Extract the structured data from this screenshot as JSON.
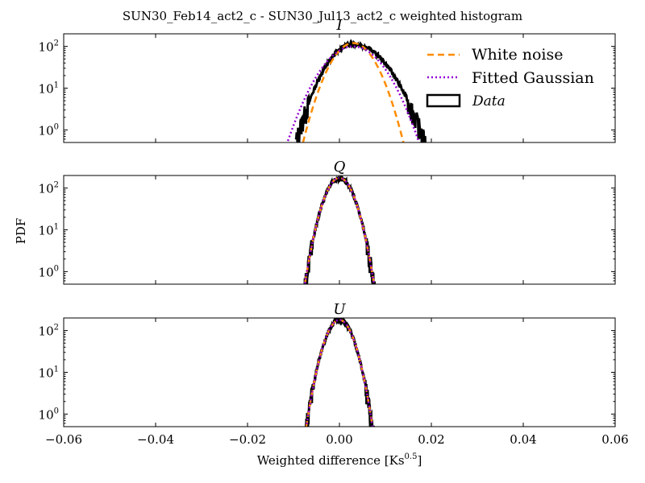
{
  "figure": {
    "title": "SUN30_Feb14_act2_c - SUN30_Jul13_act2_c weighted histogram",
    "xlabel": "Weighted difference [Ks",
    "xlabel_sup": "0.5",
    "xlabel_close": "]",
    "ylabel": "PDF"
  },
  "legend": {
    "placement": "upper-right",
    "items": [
      {
        "label": "White noise",
        "color": "#ff8c00",
        "style": "dashed"
      },
      {
        "label": "Fitted Gaussian",
        "color": "#9400d3",
        "style": "dotted"
      },
      {
        "label": "Data",
        "color": "#000000",
        "style": "box"
      }
    ]
  },
  "chart_data": [
    {
      "type": "line",
      "title": "I",
      "xlim": [
        -0.06,
        0.06
      ],
      "ylim": [
        0.5,
        200
      ],
      "yscale": "log",
      "xticks": [
        "−0.06",
        "−0.04",
        "−0.02",
        "0.00",
        "0.02",
        "0.04",
        "0.06"
      ],
      "yticks": [
        {
          "value": 1,
          "base": "10",
          "exp": "0"
        },
        {
          "value": 10,
          "base": "10",
          "exp": "1"
        },
        {
          "value": 100,
          "base": "10",
          "exp": "2"
        }
      ],
      "series": [
        {
          "name": "White noise",
          "mean": 0.003,
          "sigma": 0.0033,
          "peak": 120,
          "color": "#ff8c00"
        },
        {
          "name": "Fitted Gaussian",
          "mean": 0.003,
          "sigma": 0.0044,
          "peak": 100,
          "color": "#9400d3"
        },
        {
          "name": "Data",
          "mean": 0.003,
          "sigma": 0.0038,
          "peak": 115,
          "color": "#000000",
          "x_range": [
            -0.0095,
            0.023
          ]
        }
      ]
    },
    {
      "type": "line",
      "title": "Q",
      "xlim": [
        -0.06,
        0.06
      ],
      "ylim": [
        0.5,
        200
      ],
      "yscale": "log",
      "xticks": [
        "−0.06",
        "−0.04",
        "−0.02",
        "0.00",
        "0.02",
        "0.04",
        "0.06"
      ],
      "yticks": [
        {
          "value": 1,
          "base": "10",
          "exp": "0"
        },
        {
          "value": 10,
          "base": "10",
          "exp": "1"
        },
        {
          "value": 100,
          "base": "10",
          "exp": "2"
        }
      ],
      "series": [
        {
          "name": "White noise",
          "mean": 0.0,
          "sigma": 0.0022,
          "peak": 175,
          "color": "#ff8c00"
        },
        {
          "name": "Fitted Gaussian",
          "mean": 0.0,
          "sigma": 0.0022,
          "peak": 175,
          "color": "#9400d3"
        },
        {
          "name": "Data",
          "mean": 0.0,
          "sigma": 0.0022,
          "peak": 175,
          "color": "#000000",
          "x_range": [
            -0.0085,
            0.009
          ]
        }
      ]
    },
    {
      "type": "line",
      "title": "U",
      "xlim": [
        -0.06,
        0.06
      ],
      "ylim": [
        0.5,
        200
      ],
      "yscale": "log",
      "xticks": [
        "−0.06",
        "−0.04",
        "−0.02",
        "0.00",
        "0.02",
        "0.04",
        "0.06"
      ],
      "yticks": [
        {
          "value": 1,
          "base": "10",
          "exp": "0"
        },
        {
          "value": 10,
          "base": "10",
          "exp": "1"
        },
        {
          "value": 100,
          "base": "10",
          "exp": "2"
        }
      ],
      "series": [
        {
          "name": "White noise",
          "mean": 0.0,
          "sigma": 0.0021,
          "peak": 180,
          "color": "#ff8c00"
        },
        {
          "name": "Fitted Gaussian",
          "mean": 0.0,
          "sigma": 0.0021,
          "peak": 180,
          "color": "#9400d3"
        },
        {
          "name": "Data",
          "mean": 0.0,
          "sigma": 0.0021,
          "peak": 180,
          "color": "#000000",
          "x_range": [
            -0.0085,
            0.0085
          ]
        }
      ]
    }
  ]
}
